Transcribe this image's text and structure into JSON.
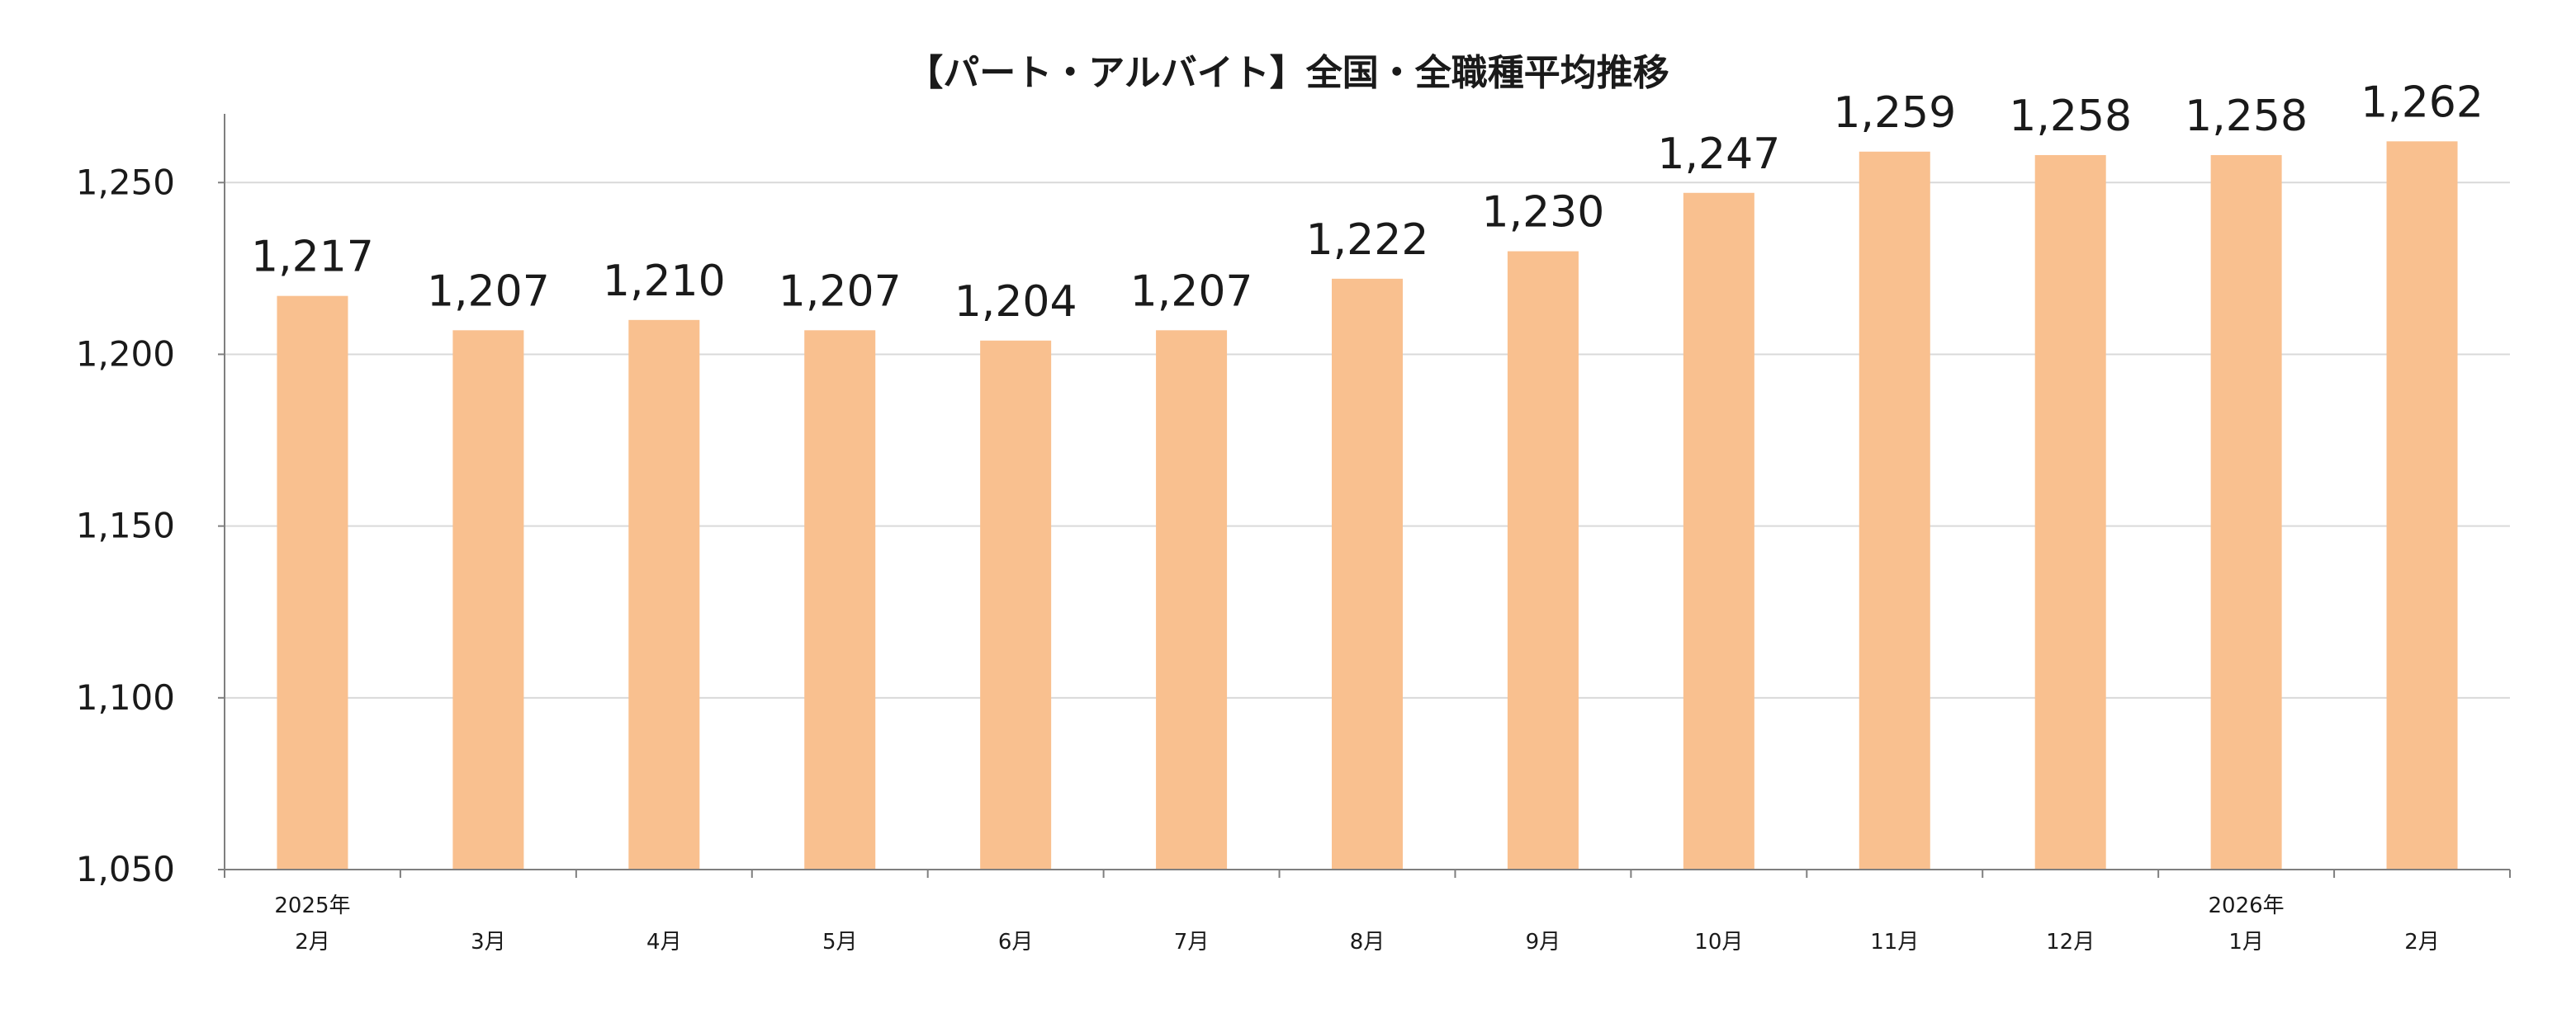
{
  "chart_data": {
    "type": "bar",
    "title": "【パート・アルバイト】全国・全職種平均推移",
    "categories": [
      "2月",
      "3月",
      "4月",
      "5月",
      "6月",
      "7月",
      "8月",
      "9月",
      "10月",
      "11月",
      "12月",
      "1月",
      "2月"
    ],
    "year_labels": [
      {
        "index": 0,
        "label": "2025年"
      },
      {
        "index": 11,
        "label": "2026年"
      }
    ],
    "values": [
      1217,
      1207,
      1210,
      1207,
      1204,
      1207,
      1222,
      1230,
      1247,
      1259,
      1258,
      1258,
      1262
    ],
    "data_labels": [
      "1,217",
      "1,207",
      "1,210",
      "1,207",
      "1,204",
      "1,207",
      "1,222",
      "1,230",
      "1,247",
      "1,259",
      "1,258",
      "1,258",
      "1,262"
    ],
    "y_ticks": [
      1050,
      1100,
      1150,
      1200,
      1250
    ],
    "y_tick_labels": [
      "1,050",
      "1,100",
      "1,150",
      "1,200",
      "1,250"
    ],
    "ylim": [
      1050,
      1270
    ],
    "xlabel": "",
    "ylabel": "",
    "grid": true,
    "legend": "none",
    "colors": {
      "bar": "#f9c08f",
      "grid": "#d9d9d9",
      "axis": "#7f7f7f",
      "text": "#1a1a1a"
    }
  }
}
